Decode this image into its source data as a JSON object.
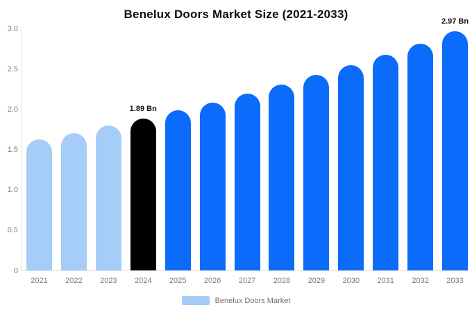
{
  "title": "Benelux Doors Market Size (2021-2033)",
  "colors": {
    "past": "#a5cdf8",
    "highlight": "#000000",
    "future": "#0b6bfb",
    "axis_line": "#e2e2e2",
    "tick_text": "#7d7d7d",
    "annotation_text": "#111111"
  },
  "legend": {
    "label": "Benelux Doors Market",
    "swatch_color": "#a5cdf8"
  },
  "chart_data": {
    "type": "bar",
    "title": "Benelux Doors Market Size (2021-2033)",
    "categories": [
      "2021",
      "2022",
      "2023",
      "2024",
      "2025",
      "2026",
      "2027",
      "2028",
      "2029",
      "2030",
      "2031",
      "2032",
      "2033"
    ],
    "values": [
      1.63,
      1.71,
      1.8,
      1.89,
      1.99,
      2.09,
      2.2,
      2.31,
      2.43,
      2.55,
      2.68,
      2.82,
      2.97
    ],
    "unit": "Bn",
    "bar_groups": [
      "past",
      "past",
      "past",
      "highlight",
      "future",
      "future",
      "future",
      "future",
      "future",
      "future",
      "future",
      "future",
      "future"
    ],
    "annotations": [
      {
        "category": "2024",
        "text": "1.89 Bn"
      },
      {
        "category": "2033",
        "text": "2.97 Bn"
      }
    ],
    "xlabel": "",
    "ylabel": "",
    "ylim": [
      0,
      3.0
    ],
    "yticks": [
      0,
      0.5,
      1.0,
      1.5,
      2.0,
      2.5,
      3.0
    ],
    "ytick_labels": [
      "0",
      "0.5",
      "1.0",
      "1.5",
      "2.0",
      "2.5",
      "3.0"
    ],
    "grid": false,
    "legend_position": "bottom",
    "legend_entries": [
      "Benelux Doors Market"
    ]
  }
}
